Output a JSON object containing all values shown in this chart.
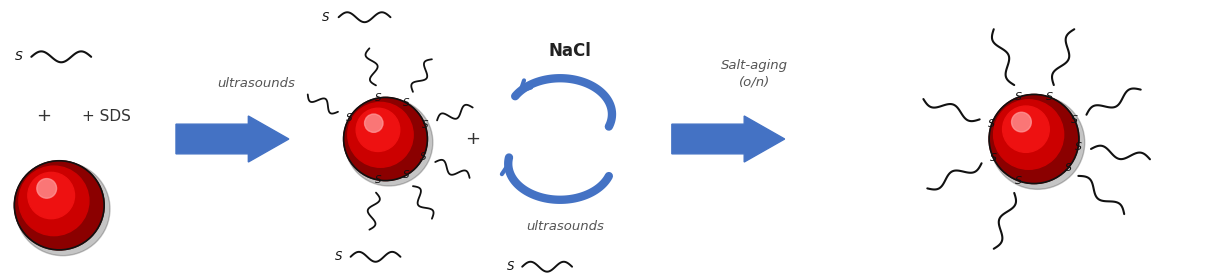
{
  "bg_color": "#ffffff",
  "arrow_color": "#4472c4",
  "text_color": "#333333",
  "strand_color": "#111111",
  "ball_dark": "#8b0000",
  "ball_mid": "#cc0000",
  "ball_bright": "#ff2222",
  "ball_highlight": "#ff9999",
  "figw": 12.12,
  "figh": 2.78,
  "dpi": 100,
  "label_ultrasounds1": "ultrasounds",
  "label_ultrasounds2": "ultrasounds",
  "label_nacl": "NaCl",
  "label_salt_aging": "Salt-aging\n(o/n)",
  "label_sds": "+ SDS",
  "label_plus1": "+",
  "label_plus2": "+"
}
